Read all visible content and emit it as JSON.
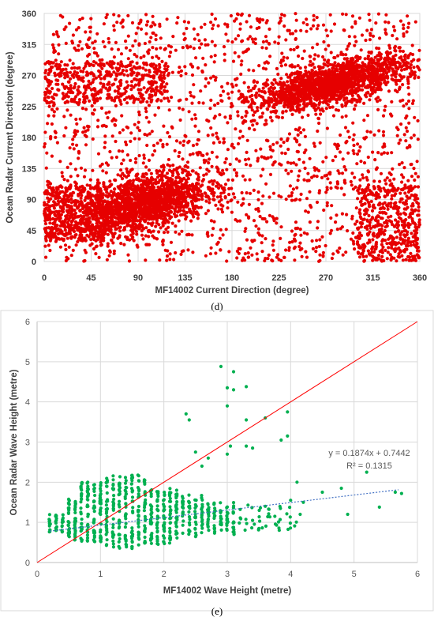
{
  "chart_data": [
    {
      "type": "scatter",
      "panel_label": "(d)",
      "xlabel": "MF14002 Current Direction (degree)",
      "ylabel": "Ocean Radar Current Direction (degree)",
      "xlim": [
        0,
        360
      ],
      "ylim": [
        0,
        360
      ],
      "xticks": [
        "0",
        "45",
        "90",
        "135",
        "180",
        "225",
        "270",
        "315",
        "360"
      ],
      "yticks": [
        "0",
        "45",
        "90",
        "135",
        "180",
        "225",
        "270",
        "315",
        "360"
      ],
      "grid": true,
      "point_color": "#e60000",
      "clusters": [
        {
          "name": "",
          "x_center": 95,
          "y_center": 85,
          "x_spread": 30,
          "y_spread": 20,
          "count": 1600
        },
        {
          "name": "",
          "x_center": 275,
          "y_center": 258,
          "x_spread": 35,
          "y_spread": 14,
          "count": 1600
        }
      ],
      "background_points": 1800
    },
    {
      "type": "scatter",
      "panel_label": "(e)",
      "xlabel": "MF14002 Wave Height (metre)",
      "ylabel": "Ocean Radar Wave Height (metre)",
      "xlim": [
        0,
        6
      ],
      "ylim": [
        0,
        6
      ],
      "xticks": [
        "0",
        "1",
        "2",
        "3",
        "4",
        "5",
        "6"
      ],
      "yticks": [
        "0",
        "1",
        "2",
        "3",
        "4",
        "5",
        "6"
      ],
      "grid": true,
      "point_color": "#00b050",
      "identity_line_color": "#ff0000",
      "trendline": {
        "slope": 0.1874,
        "intercept": 0.7442,
        "x_range": [
          0.2,
          5.7
        ],
        "color": "#4472c4"
      },
      "equation_text": "y = 0.1874x + 0.7442",
      "r2_text": "R² = 0.1315",
      "outliers": [
        [
          2.9,
          4.88
        ],
        [
          3.1,
          4.75
        ],
        [
          3.0,
          4.35
        ],
        [
          3.1,
          4.3
        ],
        [
          3.3,
          4.38
        ],
        [
          3.0,
          3.9
        ],
        [
          2.35,
          3.7
        ],
        [
          2.4,
          3.55
        ],
        [
          3.6,
          3.6
        ],
        [
          3.95,
          3.75
        ],
        [
          3.3,
          3.55
        ],
        [
          3.85,
          3.05
        ],
        [
          3.95,
          3.15
        ],
        [
          2.5,
          2.75
        ],
        [
          2.7,
          2.6
        ],
        [
          3.05,
          2.9
        ],
        [
          3.3,
          2.9
        ],
        [
          3.4,
          2.85
        ],
        [
          3.0,
          2.7
        ],
        [
          2.6,
          2.4
        ],
        [
          4.1,
          2.0
        ],
        [
          4.5,
          1.75
        ],
        [
          4.8,
          1.85
        ],
        [
          5.2,
          2.25
        ],
        [
          4.9,
          1.2
        ],
        [
          5.4,
          1.38
        ],
        [
          5.65,
          1.75
        ],
        [
          5.75,
          1.72
        ],
        [
          4.2,
          1.5
        ],
        [
          4.15,
          1.2
        ],
        [
          4.0,
          1.55
        ],
        [
          3.6,
          1.4
        ],
        [
          3.75,
          1.15
        ],
        [
          3.5,
          0.85
        ],
        [
          3.4,
          1.05
        ]
      ]
    }
  ]
}
